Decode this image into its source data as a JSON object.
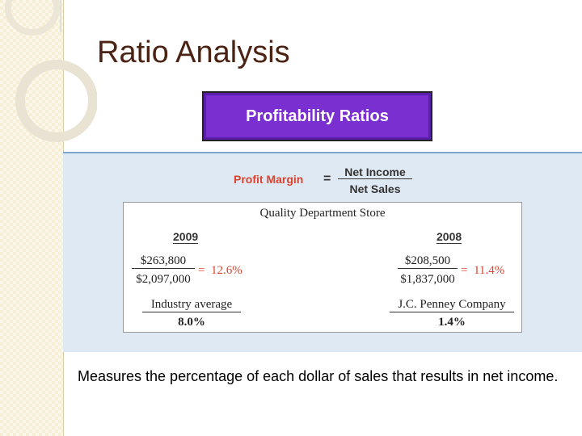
{
  "title": "Ratio Analysis",
  "banner": "Profitability Ratios",
  "formula": {
    "name": "Profit Margin",
    "operator": "=",
    "numerator": "Net Income",
    "denominator": "Net Sales"
  },
  "example": {
    "heading": "Quality Department Store",
    "operator": "=",
    "columns": [
      {
        "year": "2009",
        "numerator": "$263,800",
        "denominator": "$2,097,000",
        "result": "12.6%",
        "comparison_label": "Industry average",
        "comparison_value": "8.0%"
      },
      {
        "year": "2008",
        "numerator": "$208,500",
        "denominator": "$1,837,000",
        "result": "11.4%",
        "comparison_label": "J.C. Penney Company",
        "comparison_value": "1.4%"
      }
    ]
  },
  "description": "Measures the percentage of each dollar of sales that results in net income."
}
